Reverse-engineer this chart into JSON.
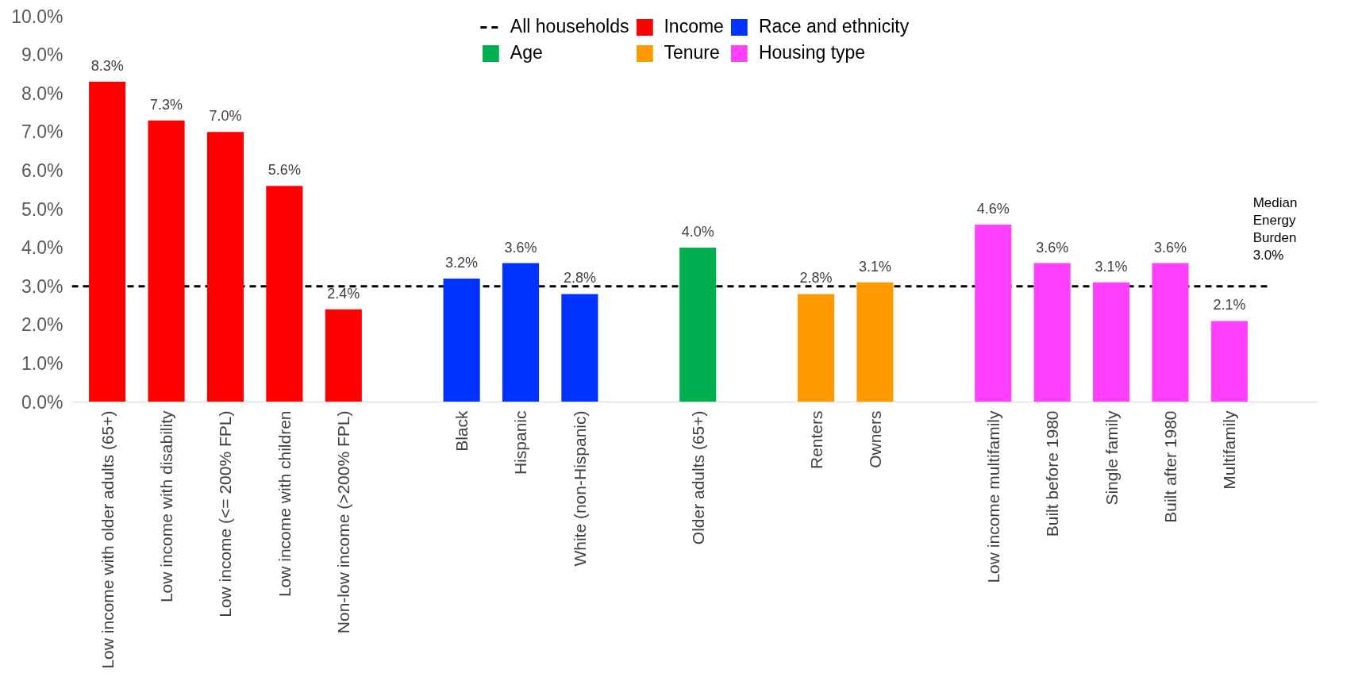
{
  "chart_data": {
    "type": "bar",
    "categories": [
      "Low income with older adults (65+)",
      "Low income with disability",
      "Low income (<= 200% FPL)",
      "Low income with children",
      "Non-low income (>200% FPL)",
      null,
      "Black",
      "Hispanic",
      "White (non-Hispanic)",
      null,
      "Older adults (65+)",
      null,
      "Renters",
      "Owners",
      null,
      "Low income multifamily",
      "Built before 1980",
      "Single family",
      "Built after 1980",
      "Multifamily"
    ],
    "series": [
      {
        "name": "Income",
        "color": "#ff0000",
        "values": [
          8.3,
          7.3,
          7.0,
          5.6,
          2.4,
          null,
          null,
          null,
          null,
          null,
          null,
          null,
          null,
          null,
          null,
          null,
          null,
          null,
          null,
          null
        ],
        "value_labels": [
          "8.3%",
          "7.3%",
          "7.0%",
          "5.6%",
          "2.4%",
          null,
          null,
          null,
          null,
          null,
          null,
          null,
          null,
          null,
          null,
          null,
          null,
          null,
          null,
          null
        ]
      },
      {
        "name": "Race and ethnicity",
        "color": "#0033ff",
        "values": [
          null,
          null,
          null,
          null,
          null,
          null,
          3.2,
          3.6,
          2.8,
          null,
          null,
          null,
          null,
          null,
          null,
          null,
          null,
          null,
          null,
          null
        ],
        "value_labels": [
          null,
          null,
          null,
          null,
          null,
          null,
          "3.2%",
          "3.6%",
          "2.8%",
          null,
          null,
          null,
          null,
          null,
          null,
          null,
          null,
          null,
          null,
          null
        ]
      },
      {
        "name": "Age",
        "color": "#00b050",
        "values": [
          null,
          null,
          null,
          null,
          null,
          null,
          null,
          null,
          null,
          null,
          4.0,
          null,
          null,
          null,
          null,
          null,
          null,
          null,
          null,
          null
        ],
        "value_labels": [
          null,
          null,
          null,
          null,
          null,
          null,
          null,
          null,
          null,
          null,
          "4.0%",
          null,
          null,
          null,
          null,
          null,
          null,
          null,
          null,
          null
        ]
      },
      {
        "name": "Tenure",
        "color": "#ff9900",
        "values": [
          null,
          null,
          null,
          null,
          null,
          null,
          null,
          null,
          null,
          null,
          null,
          null,
          2.8,
          3.1,
          null,
          null,
          null,
          null,
          null,
          null
        ],
        "value_labels": [
          null,
          null,
          null,
          null,
          null,
          null,
          null,
          null,
          null,
          null,
          null,
          null,
          "2.8%",
          "3.1%",
          null,
          null,
          null,
          null,
          null,
          null
        ]
      },
      {
        "name": "Housing type",
        "color": "#ff40ff",
        "values": [
          null,
          null,
          null,
          null,
          null,
          null,
          null,
          null,
          null,
          null,
          null,
          null,
          null,
          null,
          null,
          4.6,
          3.6,
          3.1,
          3.6,
          2.1
        ],
        "value_labels": [
          null,
          null,
          null,
          null,
          null,
          null,
          null,
          null,
          null,
          null,
          null,
          null,
          null,
          null,
          null,
          "4.6%",
          "3.6%",
          "3.1%",
          "3.6%",
          "2.1%"
        ]
      }
    ],
    "ylim": [
      0,
      10
    ],
    "yticks": [
      {
        "value": 0,
        "label": "0.0%"
      },
      {
        "value": 1,
        "label": "1.0%"
      },
      {
        "value": 2,
        "label": "2.0%"
      },
      {
        "value": 3,
        "label": "3.0%"
      },
      {
        "value": 4,
        "label": "4.0%"
      },
      {
        "value": 5,
        "label": "5.0%"
      },
      {
        "value": 6,
        "label": "6.0%"
      },
      {
        "value": 7,
        "label": "7.0%"
      },
      {
        "value": 8,
        "label": "8.0%"
      },
      {
        "value": 9,
        "label": "9.0%"
      },
      {
        "value": 10,
        "label": "10.0%"
      }
    ],
    "ref_lines": [
      {
        "axis": "y",
        "value": 3.0,
        "label": "All households",
        "color": "#000000",
        "line_style": "dashed"
      }
    ],
    "annotations": [
      "Median",
      "Energy",
      "Burden",
      "3.0%"
    ],
    "grid": false,
    "legend": "top"
  }
}
